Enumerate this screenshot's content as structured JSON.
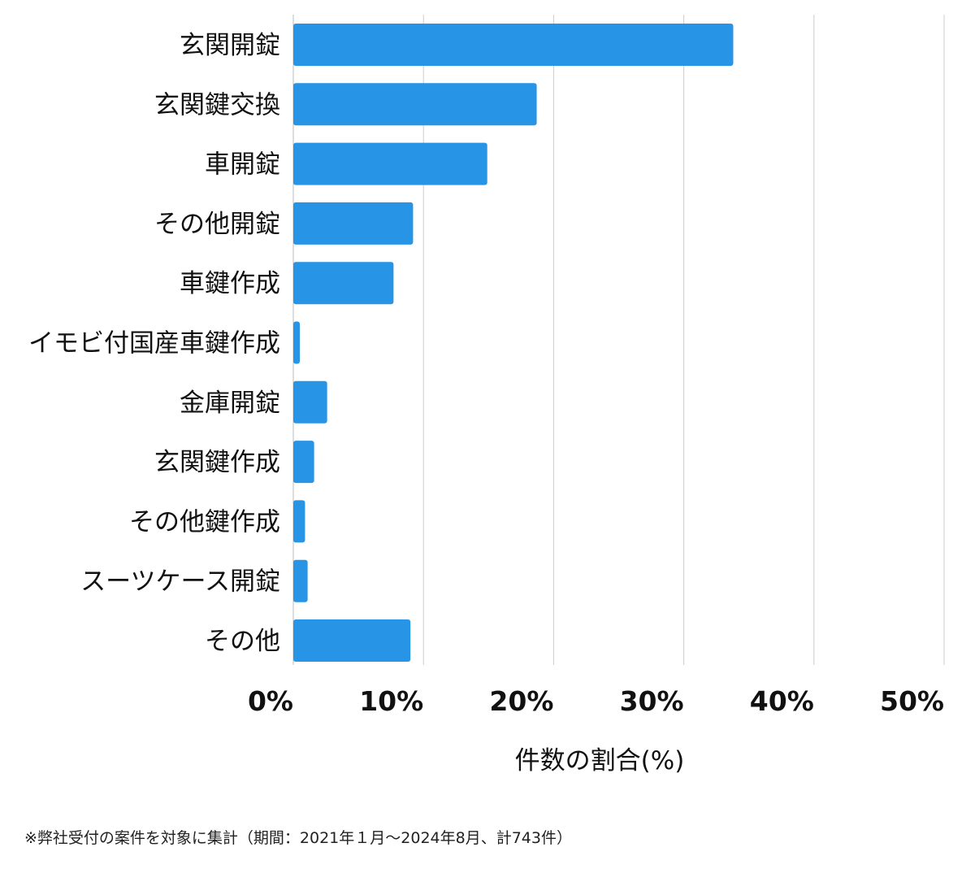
{
  "chart_data": {
    "type": "bar",
    "orientation": "horizontal",
    "categories": [
      "玄関開錠",
      "玄関鍵交換",
      "車開錠",
      "その他開錠",
      "車鍵作成",
      "イモビ付国産車鍵作成",
      "金庫開錠",
      "玄関鍵作成",
      "その他鍵作成",
      "スーツケース開錠",
      "その他"
    ],
    "values": [
      33.8,
      18.7,
      14.9,
      9.2,
      7.7,
      0.5,
      2.6,
      1.6,
      0.9,
      1.1,
      9.0
    ],
    "xlabel": "件数の割合(%)",
    "ylabel": "",
    "xlim": [
      0,
      50
    ],
    "xticks": [
      0,
      10,
      20,
      30,
      40,
      50
    ],
    "xtick_labels": [
      "0%",
      "10%",
      "20%",
      "30%",
      "40%",
      "50%"
    ],
    "grid": "vertical",
    "bar_color": "#2794e6",
    "grid_color": "#cccccc"
  },
  "footnote": "※弊社受付の案件を対象に集計（期間：2021年１月～2024年8月、計743件）"
}
